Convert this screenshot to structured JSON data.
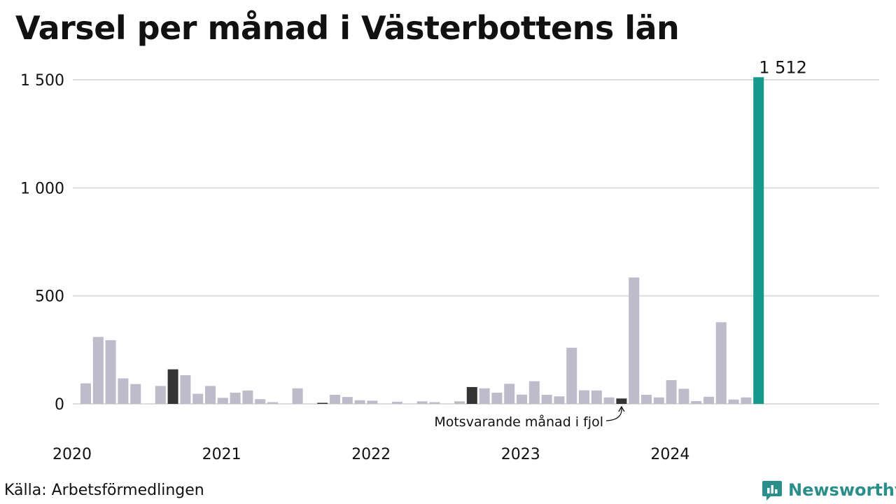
{
  "title": "Varsel per månad i Västerbottens län",
  "source": "Källa: Arbetsförmedlingen",
  "brand": {
    "name": "Newsworthy",
    "icon": "newsworthy-logo-icon"
  },
  "colors": {
    "bar": "#bebbcb",
    "highlight": "#333333",
    "latest": "#15998a",
    "grid": "#dddddd",
    "brand": "#2a8f8a"
  },
  "chart_data": {
    "type": "bar",
    "title": "Varsel per månad i Västerbottens län",
    "xlabel": "",
    "ylabel": "",
    "ylim": [
      0,
      1500
    ],
    "yticks": [
      0,
      500,
      1000,
      1500
    ],
    "ytick_labels": [
      "0",
      "500",
      "1 000",
      "1 500"
    ],
    "xtick_labels": [
      "2020",
      "2021",
      "2022",
      "2023",
      "2024"
    ],
    "xtick_month_index": [
      0,
      12,
      24,
      36,
      48
    ],
    "grid": true,
    "values": [
      95,
      310,
      295,
      118,
      92,
      0,
      83,
      160,
      133,
      47,
      83,
      28,
      52,
      62,
      22,
      8,
      0,
      72,
      0,
      5,
      42,
      32,
      17,
      15,
      0,
      10,
      0,
      12,
      8,
      0,
      12,
      78,
      72,
      52,
      93,
      43,
      105,
      42,
      35,
      260,
      63,
      62,
      30,
      25,
      585,
      42,
      30,
      110,
      70,
      13,
      33,
      378,
      20,
      30,
      1512
    ],
    "highlight_indices": [
      7,
      19,
      31,
      43
    ],
    "latest_index": 54,
    "latest_label": "1 512",
    "annotation": {
      "text": "Motsvarande månad i fjol",
      "target_index": 43
    }
  }
}
